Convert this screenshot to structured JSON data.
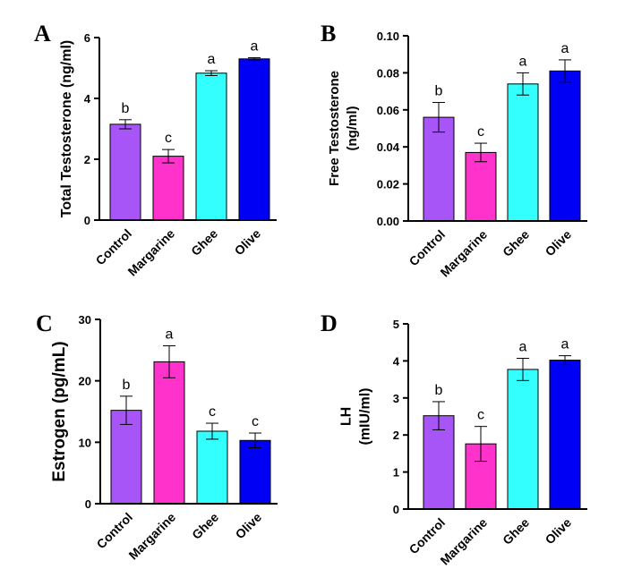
{
  "chart_data": [
    {
      "type": "bar",
      "panel": "A",
      "ylabel_lines": [
        "Total Testosterone (ng/ml)"
      ],
      "categories": [
        "Control",
        "Margarine",
        "Ghee",
        "Olive"
      ],
      "colors": [
        "#a855f7",
        "#ff33cc",
        "#33ffff",
        "#0000f5"
      ],
      "values": [
        3.15,
        2.1,
        4.83,
        5.3
      ],
      "errors": [
        0.15,
        0.22,
        0.08,
        0.04
      ],
      "significance": [
        "b",
        "c",
        "a",
        "a"
      ],
      "ylim": [
        0,
        6
      ],
      "yticks": [
        "0",
        "2",
        "4",
        "6"
      ]
    },
    {
      "type": "bar",
      "panel": "B",
      "ylabel_lines": [
        "Free Testosterone",
        "(ng/ml)"
      ],
      "categories": [
        "Control",
        "Margarine",
        "Ghee",
        "Olive"
      ],
      "colors": [
        "#a855f7",
        "#ff33cc",
        "#33ffff",
        "#0000f5"
      ],
      "values": [
        0.056,
        0.037,
        0.074,
        0.081
      ],
      "errors": [
        0.008,
        0.005,
        0.006,
        0.006
      ],
      "significance": [
        "b",
        "c",
        "a",
        "a"
      ],
      "ylim": [
        0,
        0.1
      ],
      "yticks": [
        "0.00",
        "0.02",
        "0.04",
        "0.06",
        "0.08",
        "0.10"
      ]
    },
    {
      "type": "bar",
      "panel": "C",
      "ylabel_lines": [
        "Estrogen (pg/mL)"
      ],
      "categories": [
        "Control",
        "Margarine",
        "Ghee",
        "Olive"
      ],
      "colors": [
        "#a855f7",
        "#ff33cc",
        "#33ffff",
        "#0000f5"
      ],
      "values": [
        15.2,
        23.1,
        11.8,
        10.3
      ],
      "errors": [
        2.3,
        2.6,
        1.3,
        1.2
      ],
      "significance": [
        "b",
        "a",
        "c",
        "c"
      ],
      "ylim": [
        0,
        30
      ],
      "yticks": [
        "0",
        "10",
        "20",
        "30"
      ]
    },
    {
      "type": "bar",
      "panel": "D",
      "ylabel_lines": [
        "LH",
        "(mIU/ml)"
      ],
      "categories": [
        "Control",
        "Margarine",
        "Ghee",
        "Olive"
      ],
      "colors": [
        "#a855f7",
        "#ff33cc",
        "#33ffff",
        "#0000f5"
      ],
      "values": [
        2.52,
        1.76,
        3.77,
        4.02
      ],
      "errors": [
        0.38,
        0.47,
        0.3,
        0.12
      ],
      "significance": [
        "b",
        "c",
        "a",
        "a"
      ],
      "ylim": [
        0,
        5
      ],
      "yticks": [
        "0",
        "1",
        "2",
        "3",
        "4",
        "5"
      ]
    }
  ]
}
